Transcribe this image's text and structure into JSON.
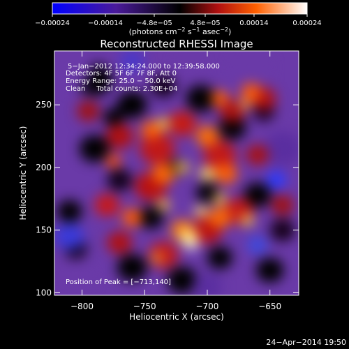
{
  "chart_data": {
    "type": "heatmap",
    "title": "Reconstructed RHESSI Image",
    "xlabel": "Heliocentric X (arcsec)",
    "ylabel": "Heliocentric Y (arcsec)",
    "xlim": [
      -822,
      -627
    ],
    "ylim": [
      98,
      293
    ],
    "x_ticks": [
      -800,
      -750,
      -700,
      -650
    ],
    "x_tick_labels": [
      "−800",
      "−750",
      "−700",
      "−650"
    ],
    "y_ticks": [
      100,
      150,
      200,
      250
    ],
    "y_tick_labels": [
      "100",
      "150",
      "200",
      "250"
    ],
    "colorbar": {
      "range": [
        -0.00024,
        0.00024
      ],
      "ticks": [
        -0.00024,
        -0.00014,
        -4.8e-05,
        4.8e-05,
        0.00014,
        0.00024
      ],
      "tick_labels": [
        "−0.00024",
        "−0.00014",
        "−4.8e−05",
        "4.8e−05",
        "0.00014",
        "0.00024"
      ],
      "units_main": "(photons cm",
      "units_sup1": "−2",
      "units_mid": " s",
      "units_sup2": "−1",
      "units_end": " asec",
      "units_sup3": "−2",
      "units_close": ")"
    },
    "peak": [
      -713,
      140
    ],
    "annotations": [
      "5−Jan−2012 12:34:24.000 to 12:39:58.000",
      "Detectors: 4F 5F 6F 7F 8F, Att 0",
      "Energy Range: 25.0 − 50.0 keV",
      "Clean     Total counts: 2.30E+04"
    ],
    "peak_label": "Position of Peak = [−713,140]",
    "colors": {
      "background": "#000000",
      "text": "#ffffff"
    }
  },
  "footer": {
    "date": "24−Apr−2014 19:50"
  }
}
